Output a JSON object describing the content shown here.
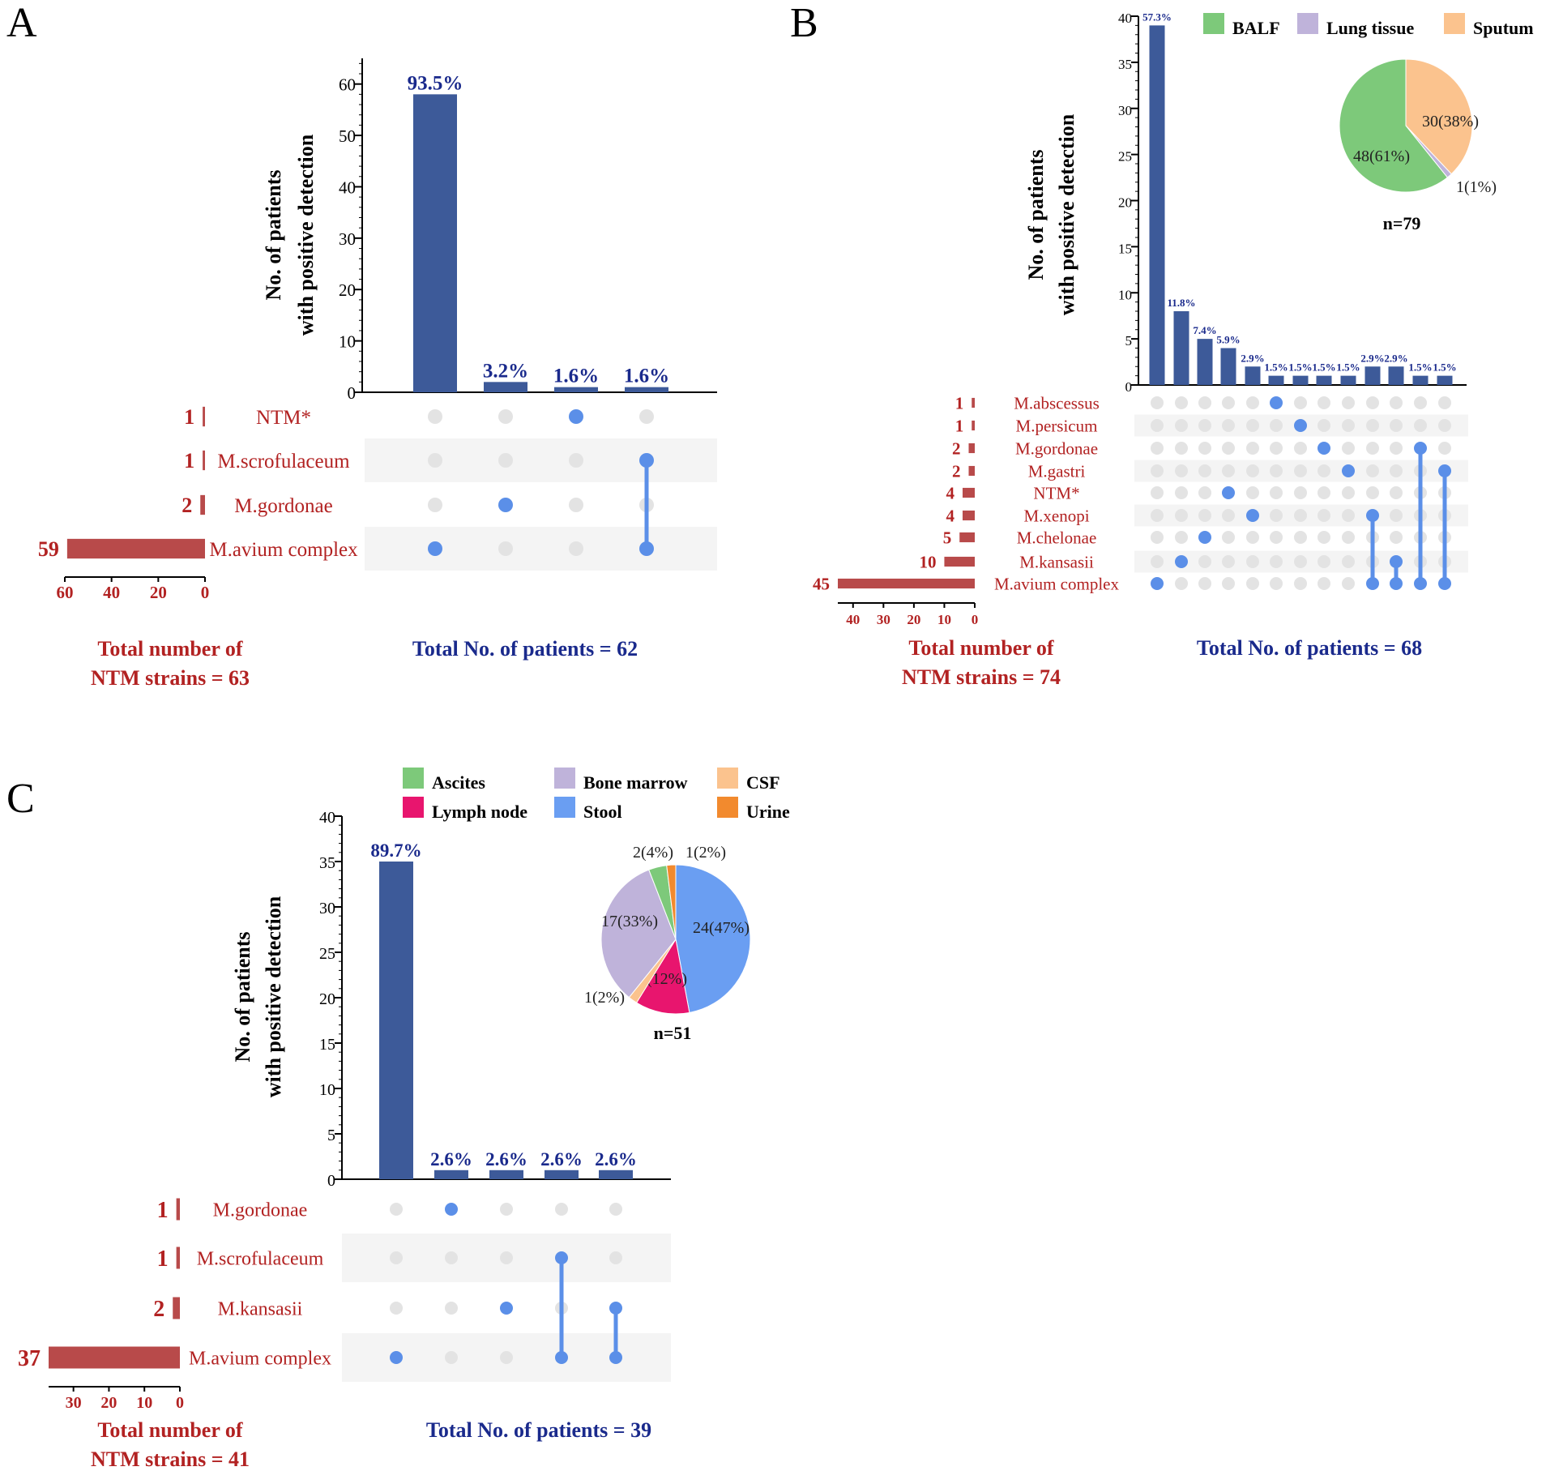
{
  "colors": {
    "bar": "#3D5A99",
    "set_bar": "#B84A4A",
    "dot_on": "#5B8FE8",
    "dot_off": "#E3E3E3",
    "stripe": "#F4F4F4",
    "label_blue": "#1A2A8C",
    "label_red": "#B22222"
  },
  "chart_data": [
    {
      "panel": "A",
      "type": "bar",
      "subtype": "upset",
      "ylabel": [
        "No. of patients",
        "with positive detection"
      ],
      "ylim": [
        0,
        65
      ],
      "yticks": [
        0,
        10,
        20,
        30,
        40,
        50,
        60
      ],
      "intersections": [
        {
          "value": 58,
          "label": "93.5%",
          "sets": [
            3
          ]
        },
        {
          "value": 2,
          "label": "3.2%",
          "sets": [
            2
          ]
        },
        {
          "value": 1,
          "label": "1.6%",
          "sets": [
            0
          ]
        },
        {
          "value": 1,
          "label": "1.6%",
          "sets": [
            1,
            3
          ]
        }
      ],
      "sets": [
        {
          "name": "NTM*",
          "count": 1,
          "count_label": "1"
        },
        {
          "name": "M.scrofulaceum",
          "count": 1,
          "count_label": "1"
        },
        {
          "name": "M.gordonae",
          "count": 2,
          "count_label": "2"
        },
        {
          "name": "M.avium complex",
          "count": 59,
          "count_label": "59"
        }
      ],
      "set_axis_max": 60,
      "set_ticks": [
        60,
        40,
        20,
        0
      ],
      "total_strains": [
        "Total number of",
        "NTM strains = 63"
      ],
      "total_patients": "Total No. of patients  = 62"
    },
    {
      "panel": "B",
      "type": "bar",
      "subtype": "upset",
      "ylabel": [
        "No. of patients",
        "with positive detection"
      ],
      "ylim": [
        0,
        40
      ],
      "yticks": [
        0,
        5,
        10,
        15,
        20,
        25,
        30,
        35,
        40
      ],
      "intersections": [
        {
          "value": 39,
          "label": "57.3%",
          "sets": [
            8
          ]
        },
        {
          "value": 8,
          "label": "11.8%",
          "sets": [
            7
          ]
        },
        {
          "value": 5,
          "label": "7.4%",
          "sets": [
            6
          ]
        },
        {
          "value": 4,
          "label": "5.9%",
          "sets": [
            4
          ]
        },
        {
          "value": 2,
          "label": "2.9%",
          "sets": [
            5
          ]
        },
        {
          "value": 1,
          "label": "1.5%",
          "sets": [
            0
          ]
        },
        {
          "value": 1,
          "label": "1.5%",
          "sets": [
            1
          ]
        },
        {
          "value": 1,
          "label": "1.5%",
          "sets": [
            2
          ]
        },
        {
          "value": 1,
          "label": "1.5%",
          "sets": [
            3
          ]
        },
        {
          "value": 2,
          "label": "2.9%",
          "sets": [
            5,
            8
          ]
        },
        {
          "value": 2,
          "label": "2.9%",
          "sets": [
            7,
            8
          ]
        },
        {
          "value": 1,
          "label": "1.5%",
          "sets": [
            2,
            8
          ]
        },
        {
          "value": 1,
          "label": "1.5%",
          "sets": [
            3,
            8
          ]
        }
      ],
      "sets": [
        {
          "name": "M.abscessus",
          "count": 1,
          "count_label": "1"
        },
        {
          "name": "M.persicum",
          "count": 1,
          "count_label": "1"
        },
        {
          "name": "M.gordonae",
          "count": 2,
          "count_label": "2"
        },
        {
          "name": "M.gastri",
          "count": 2,
          "count_label": "2"
        },
        {
          "name": "NTM*",
          "count": 4,
          "count_label": "4"
        },
        {
          "name": "M.xenopi",
          "count": 4,
          "count_label": "4"
        },
        {
          "name": "M.chelonae",
          "count": 5,
          "count_label": "5"
        },
        {
          "name": "M.kansasii",
          "count": 10,
          "count_label": "10"
        },
        {
          "name": "M.avium complex",
          "count": 45,
          "count_label": "45"
        }
      ],
      "set_axis_max": 45,
      "set_ticks": [
        40,
        30,
        20,
        10,
        0
      ],
      "total_strains": [
        "Total number of",
        "NTM strains = 74"
      ],
      "total_patients": "Total No. of patients = 68",
      "pie": {
        "type": "pie",
        "n_label": "n=79",
        "legend": [
          {
            "name": "BALF",
            "color": "#7DC97A"
          },
          {
            "name": "Lung tissue",
            "color": "#BFB3DA"
          },
          {
            "name": "Sputum",
            "color": "#FBC38E"
          }
        ],
        "slices": [
          {
            "name": "Sputum",
            "value": 30,
            "label": "30(38%)",
            "color": "#FBC38E"
          },
          {
            "name": "Lung tissue",
            "value": 1,
            "label": "1(1%)",
            "color": "#BFB3DA"
          },
          {
            "name": "BALF",
            "value": 48,
            "label": "48(61%)",
            "color": "#7DC97A"
          }
        ]
      }
    },
    {
      "panel": "C",
      "type": "bar",
      "subtype": "upset",
      "ylabel": [
        "No. of patients",
        "with positive detection"
      ],
      "ylim": [
        0,
        40
      ],
      "yticks": [
        0,
        5,
        10,
        15,
        20,
        25,
        30,
        35,
        40
      ],
      "intersections": [
        {
          "value": 35,
          "label": "89.7%",
          "sets": [
            3
          ]
        },
        {
          "value": 1,
          "label": "2.6%",
          "sets": [
            0
          ]
        },
        {
          "value": 1,
          "label": "2.6%",
          "sets": [
            2
          ]
        },
        {
          "value": 1,
          "label": "2.6%",
          "sets": [
            1,
            3
          ]
        },
        {
          "value": 1,
          "label": "2.6%",
          "sets": [
            2,
            3
          ]
        }
      ],
      "sets": [
        {
          "name": "M.gordonae",
          "count": 1,
          "count_label": "1"
        },
        {
          "name": "M.scrofulaceum",
          "count": 1,
          "count_label": "1"
        },
        {
          "name": "M.kansasii",
          "count": 2,
          "count_label": "2"
        },
        {
          "name": "M.avium complex",
          "count": 37,
          "count_label": "37"
        }
      ],
      "set_axis_max": 37,
      "set_ticks": [
        30,
        20,
        10,
        0
      ],
      "total_strains": [
        "Total number of",
        "NTM strains = 41"
      ],
      "total_patients": "Total No. of patients = 39",
      "pie": {
        "type": "pie",
        "n_label": "n=51",
        "legend": [
          {
            "name": "Ascites",
            "color": "#7DC97A"
          },
          {
            "name": "Bone marrow",
            "color": "#BFB3DA"
          },
          {
            "name": "CSF",
            "color": "#FBC38E"
          },
          {
            "name": "Lymph node",
            "color": "#E8156E"
          },
          {
            "name": "Stool",
            "color": "#6A9EF2"
          },
          {
            "name": "Urine",
            "color": "#F28A2E"
          }
        ],
        "slices": [
          {
            "name": "Stool",
            "value": 24,
            "label": "24(47%)",
            "color": "#6A9EF2"
          },
          {
            "name": "Lymph node",
            "value": 6,
            "label": "6(12%)",
            "color": "#E8156E"
          },
          {
            "name": "CSF",
            "value": 1,
            "label": "1(2%)",
            "color": "#FBC38E"
          },
          {
            "name": "Bone marrow",
            "value": 17,
            "label": "17(33%)",
            "color": "#BFB3DA"
          },
          {
            "name": "Ascites",
            "value": 2,
            "label": "2(4%)",
            "color": "#7DC97A"
          },
          {
            "name": "Urine",
            "value": 1,
            "label": "1(2%)",
            "color": "#F28A2E"
          }
        ]
      }
    }
  ],
  "panel_letters": [
    "A",
    "B",
    "C"
  ]
}
